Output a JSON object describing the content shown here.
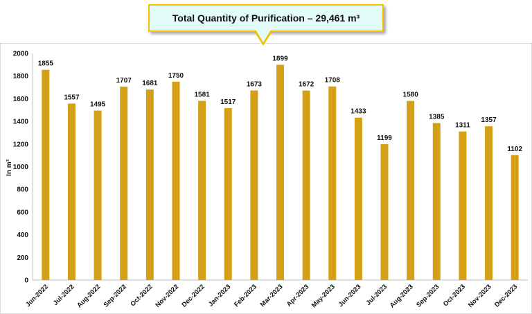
{
  "chart_data": {
    "type": "bar",
    "title": "Total Quantity of Purification – 29,461 m³",
    "ylabel": "In m³",
    "xlabel": "",
    "ylim": [
      0,
      2000
    ],
    "yticks": [
      0,
      200,
      400,
      600,
      800,
      1000,
      1200,
      1400,
      1600,
      1800,
      2000
    ],
    "categories": [
      "Jun-2022",
      "Jul-2022",
      "Aug-2022",
      "Sep-2022",
      "Oct-2022",
      "Nov-2022",
      "Dec-2022",
      "Jan-2023",
      "Feb-2023",
      "Mar-2023",
      "Apr-2023",
      "May-2023",
      "Jun-2023",
      "Jul-2023",
      "Aug-2023",
      "Sep-2023",
      "Oct-2023",
      "Nov-2023",
      "Dec-2023"
    ],
    "values": [
      1855,
      1557,
      1495,
      1707,
      1681,
      1750,
      1581,
      1517,
      1673,
      1899,
      1672,
      1708,
      1433,
      1199,
      1580,
      1385,
      1311,
      1357,
      1102
    ],
    "bar_color": "#d4a017",
    "grid": false,
    "legend": "none",
    "data_labels": true
  }
}
